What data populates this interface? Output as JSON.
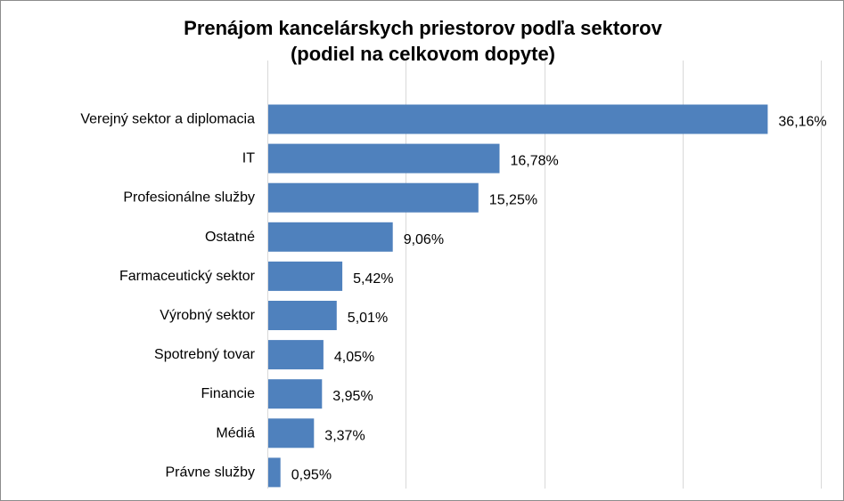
{
  "chart_data": {
    "type": "bar",
    "orientation": "horizontal",
    "title": [
      "Prenájom kancelárskych priestorov podľa sektorov",
      "(podiel na celkovom dopyte)"
    ],
    "categories": [
      "Verejný sektor a diplomacia",
      "IT",
      "Profesionálne služby",
      "Ostatné",
      "Farmaceutický sektor",
      "Výrobný sektor",
      "Spotrebný tovar",
      "Financie",
      "Médiá",
      "Právne služby"
    ],
    "values": [
      36.16,
      16.78,
      15.25,
      9.06,
      5.42,
      5.01,
      4.05,
      3.95,
      3.37,
      0.95
    ],
    "data_labels": [
      "36,16%",
      "16,78%",
      "15,25%",
      "9,06%",
      "5,42%",
      "5,01%",
      "4,05%",
      "3,95%",
      "3,37%",
      "0,95%"
    ],
    "xlim": [
      0,
      40
    ],
    "grid": "vertical",
    "gridline_step": 10,
    "legend": "none",
    "bar_color": "#4f81bd",
    "grid_color": "#d9d9d9"
  }
}
